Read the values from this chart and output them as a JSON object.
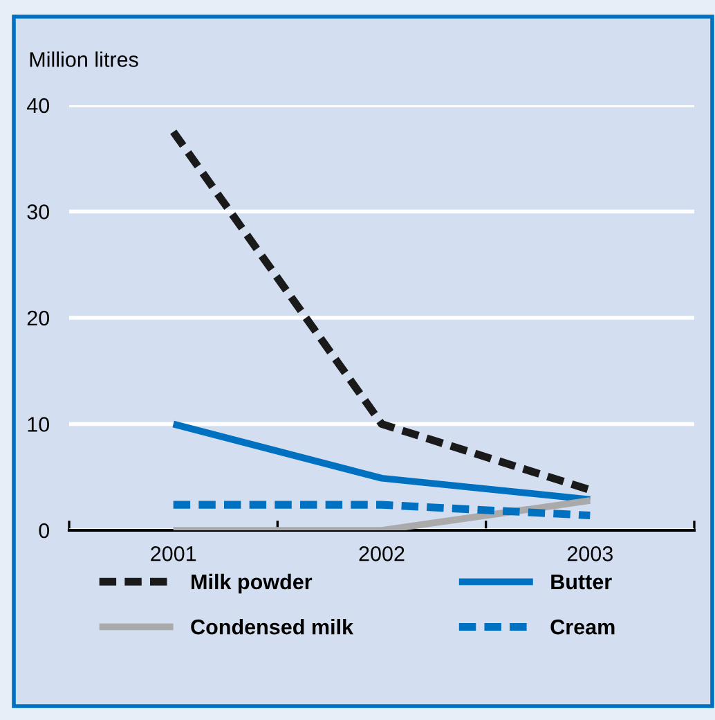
{
  "chart_data": {
    "type": "line",
    "ylabel": "Million litres",
    "categories": [
      "2001",
      "2002",
      "2003"
    ],
    "ylim": [
      0,
      40
    ],
    "yticks": [
      0,
      10,
      20,
      30,
      40
    ],
    "grid": "y",
    "legend": "bottom",
    "marker": "none",
    "series": [
      {
        "name": "Milk powder",
        "color": "#1a1a1a",
        "line_style": "dashed",
        "values": [
          37.5,
          10,
          3.8
        ]
      },
      {
        "name": "Butter",
        "color": "#0070c0",
        "line_style": "solid",
        "values": [
          10,
          4.9,
          2.9
        ]
      },
      {
        "name": "Condensed milk",
        "color": "#aaaaaa",
        "line_style": "solid",
        "values": [
          0,
          0,
          2.8
        ]
      },
      {
        "name": "Cream",
        "color": "#0070c0",
        "line_style": "dashed",
        "values": [
          2.4,
          2.4,
          1.4
        ]
      }
    ]
  }
}
